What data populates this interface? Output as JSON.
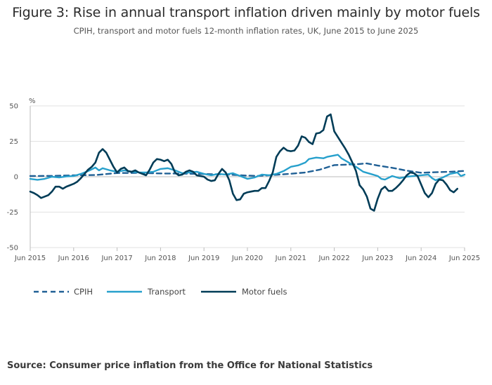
{
  "page": {
    "title": "Figure 3: Rise in annual transport inflation driven mainly by motor fuels",
    "subtitle": "CPIH, transport and motor fuels 12-month inflation rates, UK, June 2015 to June 2025",
    "source": "Source: Consumer price inflation from the Office for National Statistics"
  },
  "colors": {
    "CPIH": "#206095",
    "Transport": "#27a0cc",
    "Motor fuels": "#003c57",
    "grid": "#d9d9d9",
    "axis": "#bbbbbb"
  },
  "chart_data": {
    "type": "line",
    "title": "Figure 3: Rise in annual transport inflation driven mainly by motor fuels",
    "subtitle": "CPIH, transport and motor fuels 12-month inflation rates, UK, June 2015 to June 2025",
    "ylabel": "%",
    "xlabel": "",
    "ylim": [
      -50,
      50
    ],
    "yticks": [
      50,
      25,
      0,
      -25,
      -50
    ],
    "x_start": "Jun 2015",
    "x_end": "Jun 2025",
    "x_count": 121,
    "xticks": [
      {
        "index": 0,
        "label": "Jun 2015"
      },
      {
        "index": 12,
        "label": "Jun 2016"
      },
      {
        "index": 24,
        "label": "Jun 2017"
      },
      {
        "index": 36,
        "label": "Jun 2018"
      },
      {
        "index": 48,
        "label": "Jun 2019"
      },
      {
        "index": 60,
        "label": "Jun 2020"
      },
      {
        "index": 72,
        "label": "Jun 2021"
      },
      {
        "index": 84,
        "label": "Jun 2022"
      },
      {
        "index": 96,
        "label": "Jun 2023"
      },
      {
        "index": 108,
        "label": "Jun 2024"
      },
      {
        "index": 120,
        "label": "Jun 2025"
      }
    ],
    "grid": true,
    "legend_position": "bottom-left",
    "series": [
      {
        "name": "CPIH",
        "style": "dashed",
        "points": [
          [
            0,
            0.5
          ],
          [
            6,
            0.6
          ],
          [
            12,
            1.0
          ],
          [
            18,
            1.2
          ],
          [
            24,
            2.6
          ],
          [
            30,
            2.7
          ],
          [
            36,
            2.3
          ],
          [
            42,
            2.2
          ],
          [
            48,
            1.9
          ],
          [
            54,
            1.6
          ],
          [
            60,
            0.8
          ],
          [
            63,
            0.6
          ],
          [
            66,
            1.0
          ],
          [
            72,
            2.1
          ],
          [
            76,
            3.0
          ],
          [
            80,
            5.0
          ],
          [
            84,
            8.2
          ],
          [
            90,
            8.8
          ],
          [
            93,
            9.4
          ],
          [
            96,
            7.9
          ],
          [
            100,
            6.3
          ],
          [
            104,
            4.3
          ],
          [
            108,
            2.8
          ],
          [
            112,
            3.2
          ],
          [
            116,
            3.5
          ],
          [
            120,
            4.1
          ]
        ]
      },
      {
        "name": "Transport",
        "style": "solid",
        "points": [
          [
            0,
            -1.5
          ],
          [
            2,
            -2.2
          ],
          [
            4,
            -1.5
          ],
          [
            6,
            0
          ],
          [
            8,
            -0.5
          ],
          [
            10,
            0.2
          ],
          [
            12,
            0.5
          ],
          [
            14,
            2.0
          ],
          [
            16,
            4.0
          ],
          [
            18,
            6.5
          ],
          [
            19,
            4.5
          ],
          [
            20,
            6.0
          ],
          [
            22,
            4.5
          ],
          [
            24,
            3.5
          ],
          [
            26,
            4.5
          ],
          [
            28,
            3.5
          ],
          [
            30,
            3.0
          ],
          [
            32,
            3.0
          ],
          [
            34,
            3.5
          ],
          [
            36,
            5.5
          ],
          [
            38,
            6.0
          ],
          [
            40,
            4.5
          ],
          [
            42,
            2.5
          ],
          [
            44,
            3.0
          ],
          [
            46,
            3.5
          ],
          [
            48,
            2.0
          ],
          [
            50,
            1.0
          ],
          [
            52,
            2.0
          ],
          [
            54,
            1.5
          ],
          [
            56,
            2.5
          ],
          [
            58,
            0.5
          ],
          [
            60,
            -1.5
          ],
          [
            62,
            -0.5
          ],
          [
            64,
            1.5
          ],
          [
            66,
            1.0
          ],
          [
            68,
            2.0
          ],
          [
            70,
            4.0
          ],
          [
            72,
            7.0
          ],
          [
            74,
            8.0
          ],
          [
            76,
            10.0
          ],
          [
            77,
            12.5
          ],
          [
            79,
            13.5
          ],
          [
            81,
            13.0
          ],
          [
            82,
            14.0
          ],
          [
            84,
            15.0
          ],
          [
            85,
            15.5
          ],
          [
            86,
            13.0
          ],
          [
            88,
            10.0
          ],
          [
            90,
            7.0
          ],
          [
            92,
            3.5
          ],
          [
            94,
            2.0
          ],
          [
            96,
            0.5
          ],
          [
            97,
            -1.5
          ],
          [
            98,
            -2.0
          ],
          [
            100,
            0.5
          ],
          [
            102,
            -1.0
          ],
          [
            104,
            0.0
          ],
          [
            106,
            0.5
          ],
          [
            108,
            1.0
          ],
          [
            110,
            1.5
          ],
          [
            111,
            -1.0
          ],
          [
            112,
            -2.5
          ],
          [
            114,
            -0.5
          ],
          [
            116,
            2.0
          ],
          [
            117,
            2.5
          ],
          [
            118,
            3.0
          ],
          [
            119,
            0.5
          ],
          [
            120,
            1.5
          ]
        ]
      },
      {
        "name": "Motor fuels",
        "style": "solid",
        "points": [
          [
            0,
            -10.5
          ],
          [
            1,
            -11.5
          ],
          [
            2,
            -13.0
          ],
          [
            3,
            -15.0
          ],
          [
            4,
            -14.0
          ],
          [
            5,
            -13.0
          ],
          [
            6,
            -10.5
          ],
          [
            7,
            -7.0
          ],
          [
            8,
            -7.0
          ],
          [
            9,
            -8.5
          ],
          [
            10,
            -7.0
          ],
          [
            11,
            -6.0
          ],
          [
            12,
            -5.0
          ],
          [
            13,
            -3.5
          ],
          [
            14,
            -1.0
          ],
          [
            15,
            2.0
          ],
          [
            16,
            5.0
          ],
          [
            17,
            7.0
          ],
          [
            18,
            10.0
          ],
          [
            19,
            17.0
          ],
          [
            20,
            19.5
          ],
          [
            21,
            17.0
          ],
          [
            22,
            12.0
          ],
          [
            23,
            7.0
          ],
          [
            24,
            3.0
          ],
          [
            25,
            5.5
          ],
          [
            26,
            6.5
          ],
          [
            27,
            4.0
          ],
          [
            28,
            3.5
          ],
          [
            29,
            4.5
          ],
          [
            30,
            3.0
          ],
          [
            31,
            2.0
          ],
          [
            32,
            1.0
          ],
          [
            33,
            5.0
          ],
          [
            34,
            10.0
          ],
          [
            35,
            12.5
          ],
          [
            36,
            12.0
          ],
          [
            37,
            11.0
          ],
          [
            38,
            12.0
          ],
          [
            39,
            9.0
          ],
          [
            40,
            3.0
          ],
          [
            41,
            1.0
          ],
          [
            42,
            1.5
          ],
          [
            43,
            3.5
          ],
          [
            44,
            4.5
          ],
          [
            45,
            3.5
          ],
          [
            46,
            1.0
          ],
          [
            47,
            0.5
          ],
          [
            48,
            0.0
          ],
          [
            49,
            -2.0
          ],
          [
            50,
            -3.0
          ],
          [
            51,
            -2.5
          ],
          [
            52,
            2.0
          ],
          [
            53,
            5.5
          ],
          [
            54,
            3.0
          ],
          [
            55,
            -2.5
          ],
          [
            56,
            -12.0
          ],
          [
            57,
            -16.5
          ],
          [
            58,
            -16.0
          ],
          [
            59,
            -12.0
          ],
          [
            60,
            -11.0
          ],
          [
            61,
            -10.5
          ],
          [
            62,
            -10.0
          ],
          [
            63,
            -10.0
          ],
          [
            64,
            -8.0
          ],
          [
            65,
            -8.0
          ],
          [
            66,
            -3.0
          ],
          [
            67,
            3.0
          ],
          [
            68,
            14.0
          ],
          [
            69,
            18.0
          ],
          [
            70,
            20.5
          ],
          [
            71,
            18.5
          ],
          [
            72,
            18.0
          ],
          [
            73,
            18.5
          ],
          [
            74,
            22.0
          ],
          [
            75,
            28.5
          ],
          [
            76,
            27.5
          ],
          [
            77,
            24.5
          ],
          [
            78,
            23.0
          ],
          [
            79,
            30.5
          ],
          [
            80,
            31.0
          ],
          [
            81,
            33.0
          ],
          [
            82,
            42.5
          ],
          [
            83,
            44.0
          ],
          [
            84,
            32.0
          ],
          [
            85,
            28.0
          ],
          [
            86,
            24.0
          ],
          [
            87,
            20.0
          ],
          [
            88,
            15.5
          ],
          [
            89,
            10.0
          ],
          [
            90,
            4.0
          ],
          [
            91,
            -6.0
          ],
          [
            92,
            -9.0
          ],
          [
            93,
            -14.0
          ],
          [
            94,
            -22.5
          ],
          [
            95,
            -24.0
          ],
          [
            96,
            -15.5
          ],
          [
            97,
            -9.0
          ],
          [
            98,
            -7.0
          ],
          [
            99,
            -10.0
          ],
          [
            100,
            -10.0
          ],
          [
            101,
            -8.0
          ],
          [
            102,
            -5.5
          ],
          [
            103,
            -2.5
          ],
          [
            104,
            1.0
          ],
          [
            105,
            3.0
          ],
          [
            106,
            2.5
          ],
          [
            107,
            0.5
          ],
          [
            108,
            -5.5
          ],
          [
            109,
            -11.5
          ],
          [
            110,
            -14.5
          ],
          [
            111,
            -11.5
          ],
          [
            112,
            -5.0
          ],
          [
            113,
            -2.0
          ],
          [
            114,
            -2.5
          ],
          [
            115,
            -5.5
          ],
          [
            116,
            -9.5
          ],
          [
            117,
            -11.0
          ],
          [
            118,
            -8.5
          ]
        ]
      }
    ]
  }
}
